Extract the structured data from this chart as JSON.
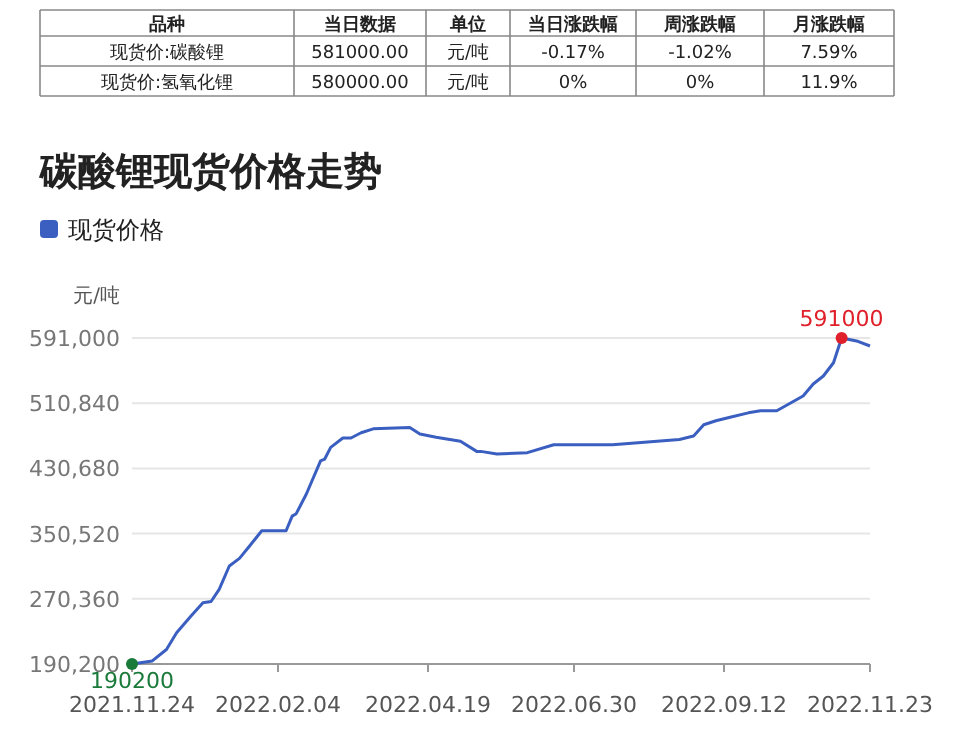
{
  "chart_data": {
    "type": "line",
    "title": "碳酸锂现货价格走势",
    "ylabel": "元/吨",
    "legend": "top left",
    "grid": "y",
    "line_style": "solid",
    "annotations": [
      "品种",
      "当日数据",
      "单位",
      "当日涨跌幅",
      "周涨跌幅",
      "月涨跌幅",
      "现货价:碳酸锂",
      "581000.00",
      "元/吨",
      "-0.17%",
      "-1.02%",
      "7.59%",
      "现货价:氢氧化锂",
      "580000.00",
      "元/吨",
      "0%",
      "0%",
      "11.9%",
      {
        "text": "190200",
        "x": "2021-11-24",
        "y": 190200
      },
      {
        "text": "591000",
        "x": "2022-11-09",
        "y": 591000
      }
    ],
    "xlim": [
      "2021-11-24",
      "2022-11-23"
    ],
    "xticks": [
      {
        "value": "2021-11-24",
        "label": "2021.11.24"
      },
      {
        "value": "2022-02-04",
        "label": "2022.02.04"
      },
      {
        "value": "2022-04-19",
        "label": "2022.04.19"
      },
      {
        "value": "2022-06-30",
        "label": "2022.06.30"
      },
      {
        "value": "2022-09-12",
        "label": "2022.09.12"
      },
      {
        "value": "2022-11-23",
        "label": "2022.11.23"
      }
    ],
    "ylim": [
      190200,
      591000
    ],
    "yticks": [
      {
        "value": 190200,
        "label": "190,200"
      },
      {
        "value": 270360,
        "label": "270,360"
      },
      {
        "value": 350520,
        "label": "350,520"
      },
      {
        "value": 430680,
        "label": "430,680"
      },
      {
        "value": 510840,
        "label": "510,840"
      },
      {
        "value": 591000,
        "label": "591,000"
      }
    ],
    "series": [
      {
        "name": "现货价格",
        "color": "#3a5fc0",
        "x": [
          "2021-11-24",
          "2021-12-04",
          "2021-12-11",
          "2021-12-16",
          "2021-12-23",
          "2021-12-29",
          "2022-01-02",
          "2022-01-06",
          "2022-01-11",
          "2022-01-16",
          "2022-01-21",
          "2022-01-27",
          "2022-02-08",
          "2022-02-11",
          "2022-02-13",
          "2022-02-18",
          "2022-02-25",
          "2022-02-27",
          "2022-03-02",
          "2022-03-08",
          "2022-03-12",
          "2022-03-17",
          "2022-03-23",
          "2022-04-10",
          "2022-04-15",
          "2022-04-23",
          "2022-05-05",
          "2022-05-13",
          "2022-05-15",
          "2022-05-23",
          "2022-06-07",
          "2022-06-20",
          "2022-07-19",
          "2022-08-21",
          "2022-08-28",
          "2022-09-02",
          "2022-09-08",
          "2022-09-16",
          "2022-09-24",
          "2022-09-30",
          "2022-10-08",
          "2022-10-21",
          "2022-10-26",
          "2022-10-31",
          "2022-11-05",
          "2022-11-09",
          "2022-11-17",
          "2022-11-23"
        ],
        "values": [
          190200,
          194000,
          208000,
          228600,
          249000,
          265500,
          267000,
          282000,
          310700,
          320000,
          335300,
          354000,
          354000,
          372000,
          375000,
          399200,
          440000,
          442000,
          456500,
          468000,
          468000,
          474500,
          479300,
          481000,
          473000,
          469000,
          464000,
          451600,
          451600,
          448400,
          450000,
          459700,
          459700,
          466300,
          470500,
          484300,
          489200,
          494100,
          499000,
          501500,
          501500,
          519700,
          534500,
          544300,
          560600,
          591000,
          586900,
          581200
        ]
      }
    ]
  }
}
